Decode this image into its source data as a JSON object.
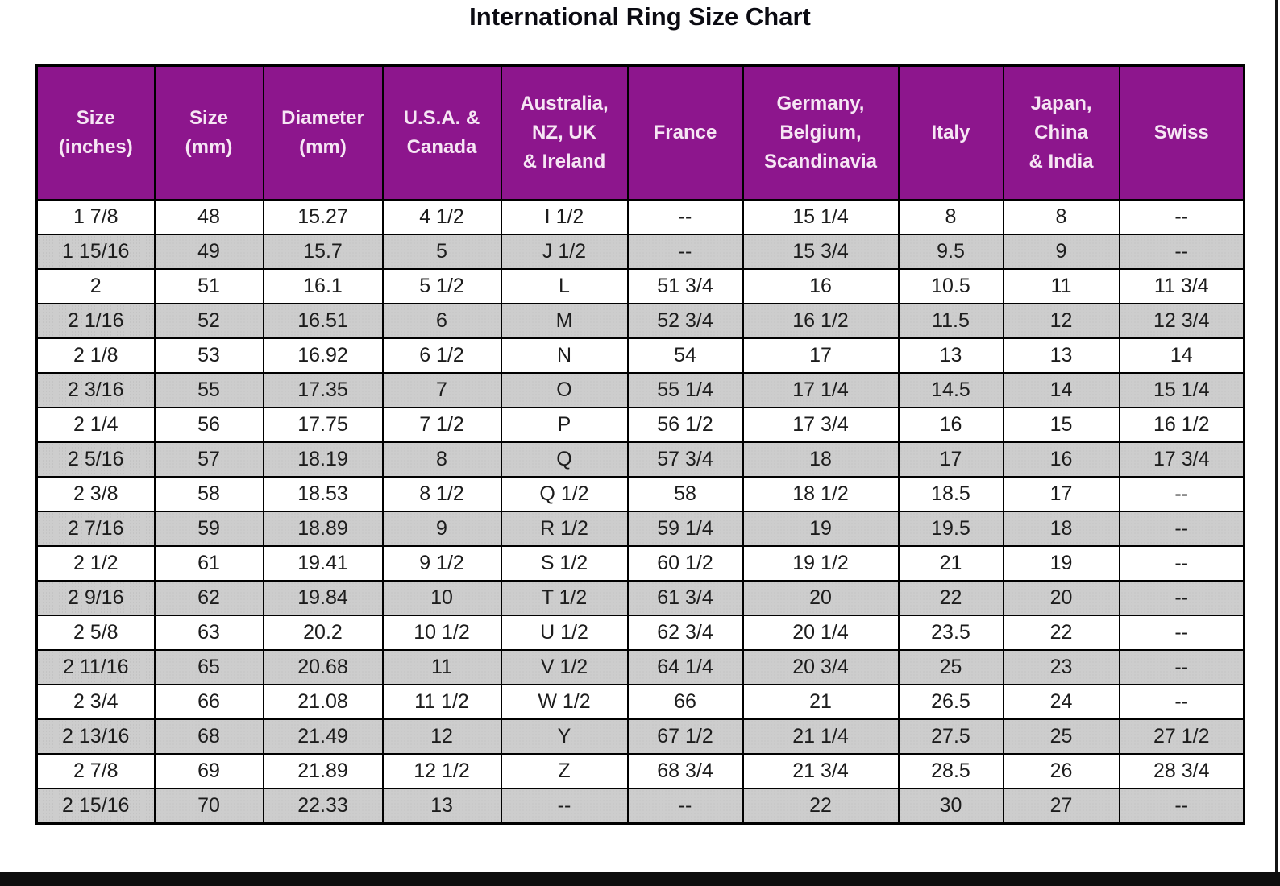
{
  "title": "International Ring Size Chart",
  "colors": {
    "header_bg": "#8d168d",
    "header_text": "#f6e6f4",
    "row_alt_bg": "#cdcdcd",
    "row_bg": "#ffffff",
    "border": "#000000"
  },
  "chart_data": {
    "type": "table",
    "title": "International Ring Size Chart",
    "columns": [
      "Size\n(inches)",
      "Size\n(mm)",
      "Diameter\n(mm)",
      "U.S.A. &\nCanada",
      "Australia,\nNZ, UK\n& Ireland",
      "France",
      "Germany,\nBelgium,\nScandinavia",
      "Italy",
      "Japan,\nChina\n& India",
      "Swiss"
    ],
    "rows": [
      [
        "1 7/8",
        "48",
        "15.27",
        "4 1/2",
        "I 1/2",
        "--",
        "15 1/4",
        "8",
        "8",
        "--"
      ],
      [
        "1 15/16",
        "49",
        "15.7",
        "5",
        "J 1/2",
        "--",
        "15 3/4",
        "9.5",
        "9",
        "--"
      ],
      [
        "2",
        "51",
        "16.1",
        "5 1/2",
        "L",
        "51 3/4",
        "16",
        "10.5",
        "11",
        "11 3/4"
      ],
      [
        "2 1/16",
        "52",
        "16.51",
        "6",
        "M",
        "52 3/4",
        "16 1/2",
        "11.5",
        "12",
        "12 3/4"
      ],
      [
        "2 1/8",
        "53",
        "16.92",
        "6 1/2",
        "N",
        "54",
        "17",
        "13",
        "13",
        "14"
      ],
      [
        "2 3/16",
        "55",
        "17.35",
        "7",
        "O",
        "55 1/4",
        "17 1/4",
        "14.5",
        "14",
        "15 1/4"
      ],
      [
        "2 1/4",
        "56",
        "17.75",
        "7 1/2",
        "P",
        "56 1/2",
        "17 3/4",
        "16",
        "15",
        "16 1/2"
      ],
      [
        "2 5/16",
        "57",
        "18.19",
        "8",
        "Q",
        "57 3/4",
        "18",
        "17",
        "16",
        "17 3/4"
      ],
      [
        "2 3/8",
        "58",
        "18.53",
        "8 1/2",
        "Q 1/2",
        "58",
        "18 1/2",
        "18.5",
        "17",
        "--"
      ],
      [
        "2 7/16",
        "59",
        "18.89",
        "9",
        "R 1/2",
        "59 1/4",
        "19",
        "19.5",
        "18",
        "--"
      ],
      [
        "2 1/2",
        "61",
        "19.41",
        "9 1/2",
        "S 1/2",
        "60 1/2",
        "19 1/2",
        "21",
        "19",
        "--"
      ],
      [
        "2 9/16",
        "62",
        "19.84",
        "10",
        "T 1/2",
        "61 3/4",
        "20",
        "22",
        "20",
        "--"
      ],
      [
        "2 5/8",
        "63",
        "20.2",
        "10 1/2",
        "U 1/2",
        "62 3/4",
        "20 1/4",
        "23.5",
        "22",
        "--"
      ],
      [
        "2 11/16",
        "65",
        "20.68",
        "11",
        "V 1/2",
        "64 1/4",
        "20 3/4",
        "25",
        "23",
        "--"
      ],
      [
        "2 3/4",
        "66",
        "21.08",
        "11 1/2",
        "W 1/2",
        "66",
        "21",
        "26.5",
        "24",
        "--"
      ],
      [
        "2 13/16",
        "68",
        "21.49",
        "12",
        "Y",
        "67 1/2",
        "21 1/4",
        "27.5",
        "25",
        "27 1/2"
      ],
      [
        "2 7/8",
        "69",
        "21.89",
        "12 1/2",
        "Z",
        "68 3/4",
        "21 3/4",
        "28.5",
        "26",
        "28 3/4"
      ],
      [
        "2 15/16",
        "70",
        "22.33",
        "13",
        "--",
        "--",
        "22",
        "30",
        "27",
        "--"
      ]
    ]
  }
}
